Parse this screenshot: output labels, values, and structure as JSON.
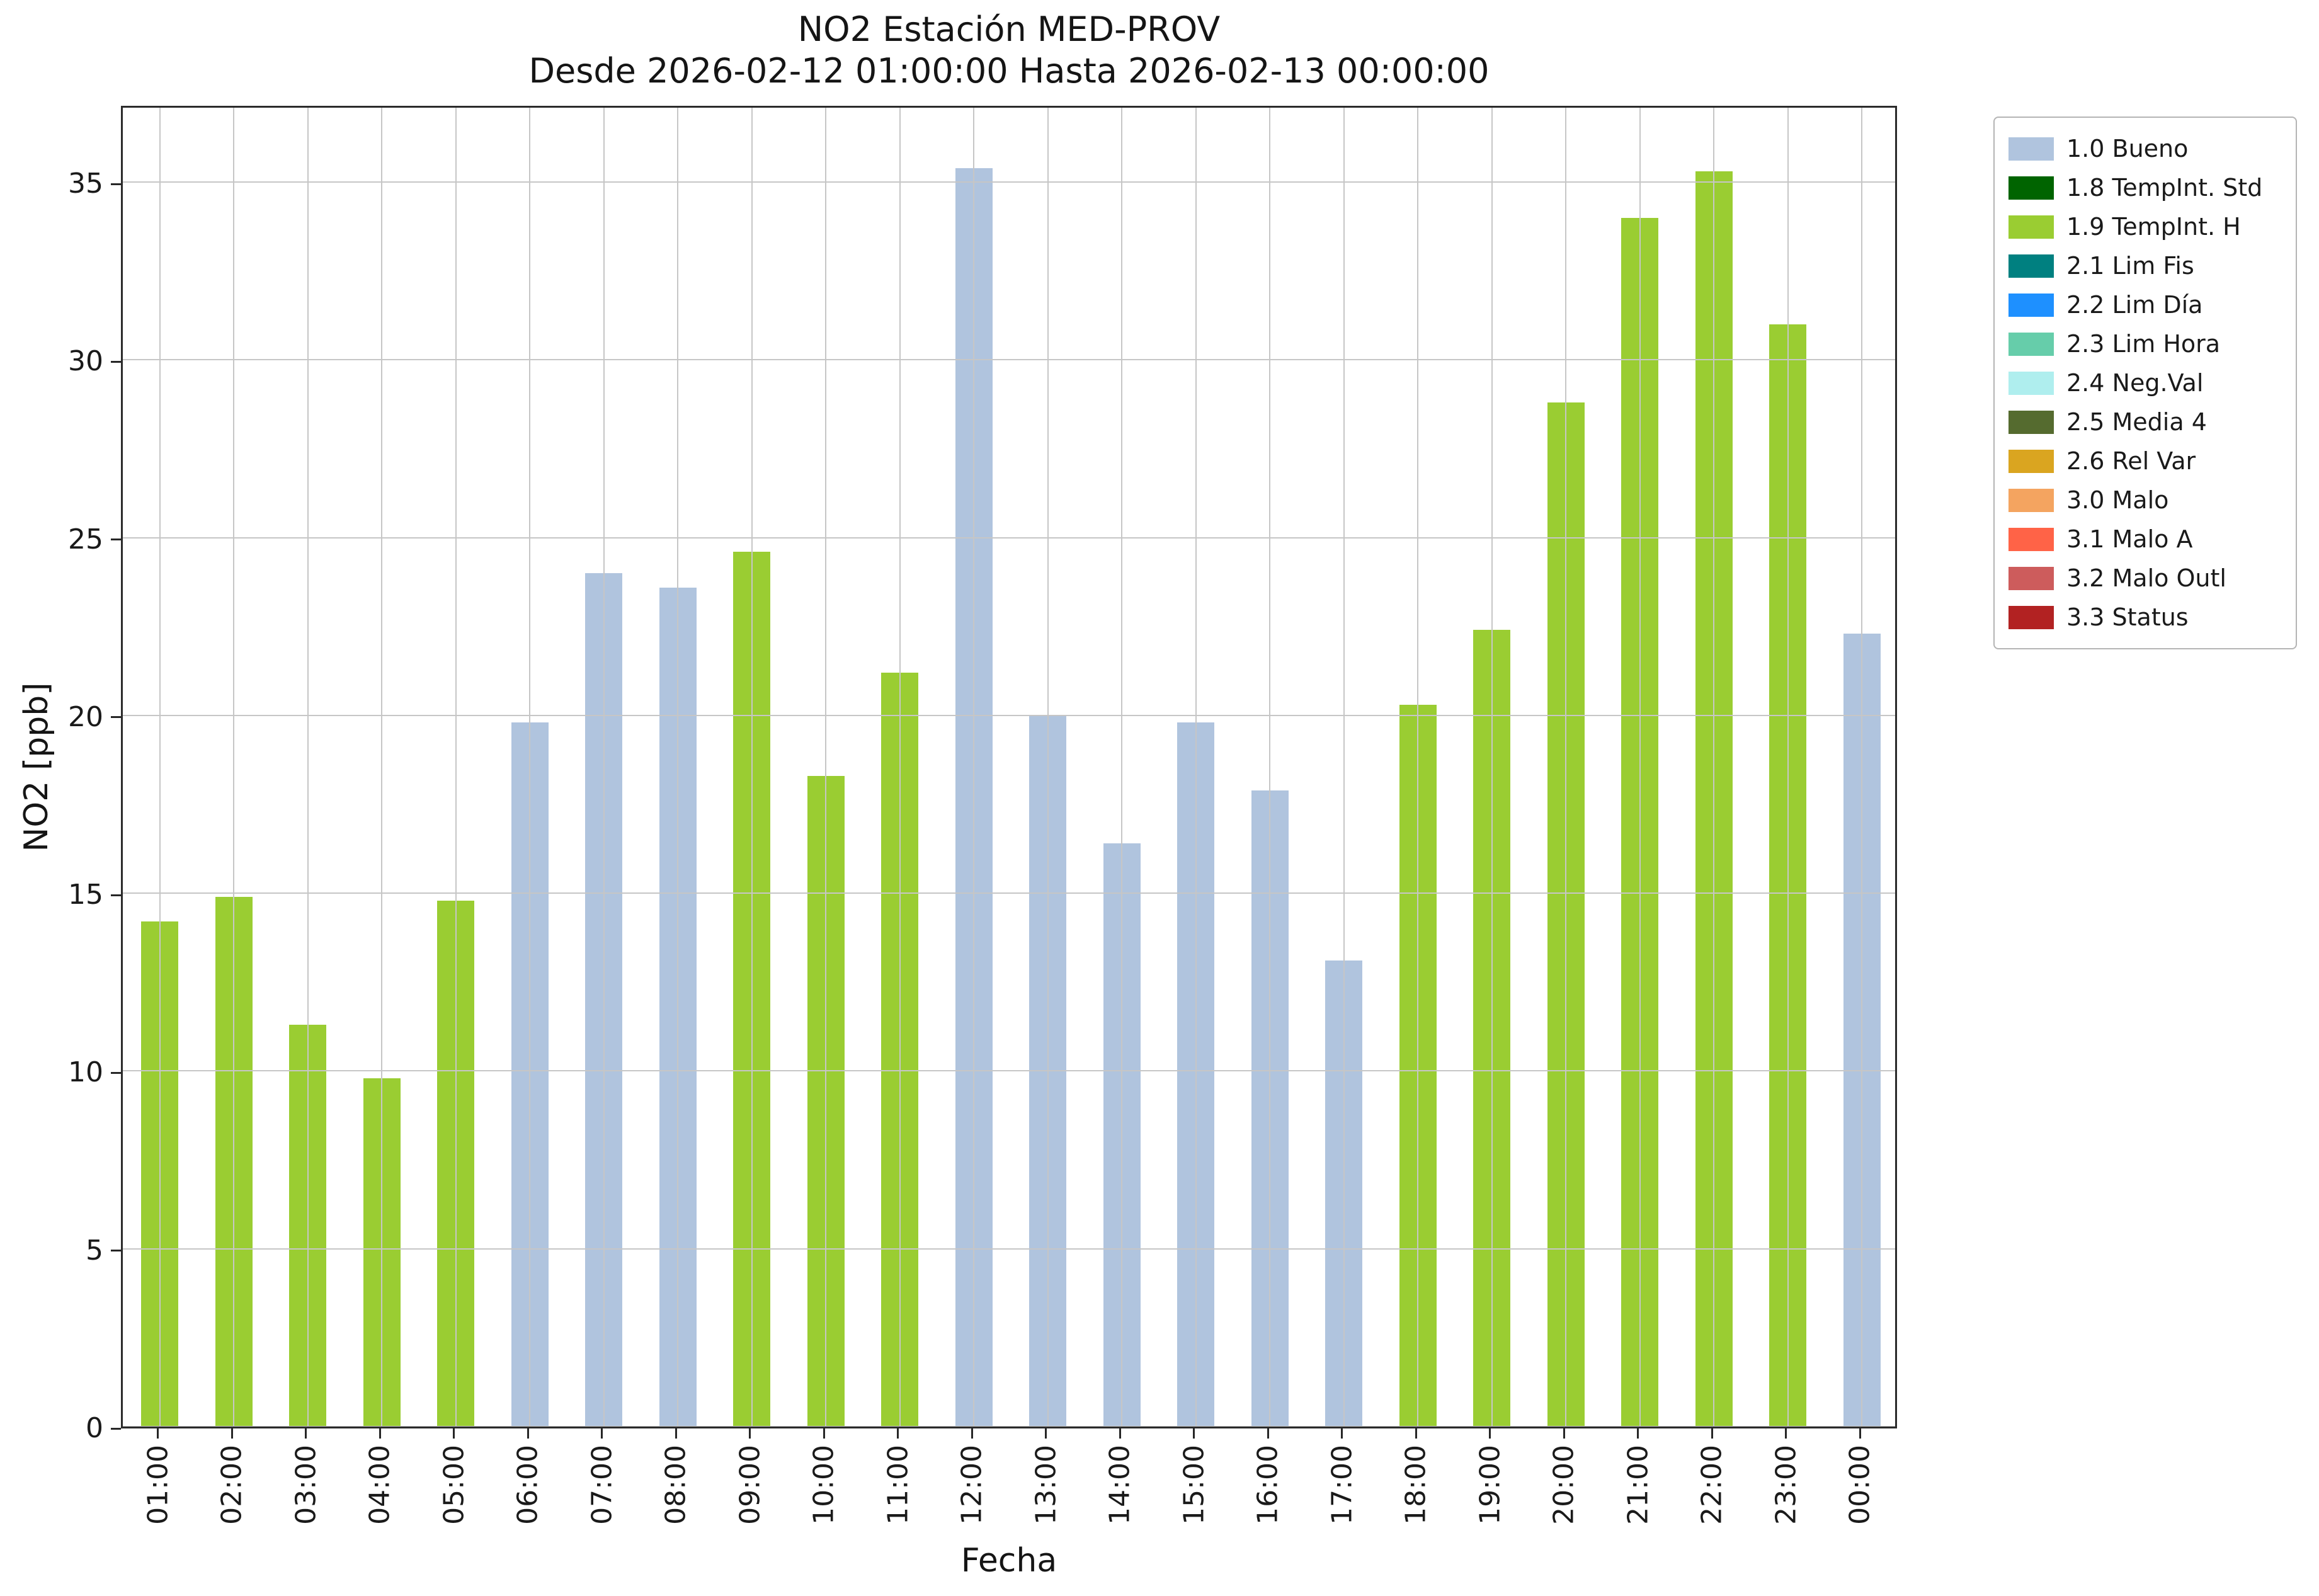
{
  "chart_data": {
    "type": "bar",
    "title": "NO2 Estación MED-PROV",
    "subtitle": "Desde 2026-02-12 01:00:00 Hasta 2026-02-13 00:00:00",
    "xlabel": "Fecha",
    "ylabel": "NO2 [ppb]",
    "ylim": [
      0,
      37.2
    ],
    "yticks": [
      0,
      5,
      10,
      15,
      20,
      25,
      30,
      35
    ],
    "grid": true,
    "legend_position": "upper right outside",
    "categories": [
      "01:00",
      "02:00",
      "03:00",
      "04:00",
      "05:00",
      "06:00",
      "07:00",
      "08:00",
      "09:00",
      "10:00",
      "11:00",
      "12:00",
      "13:00",
      "14:00",
      "15:00",
      "16:00",
      "17:00",
      "18:00",
      "19:00",
      "20:00",
      "21:00",
      "22:00",
      "23:00",
      "00:00"
    ],
    "values": [
      14.2,
      14.9,
      11.3,
      9.8,
      14.8,
      19.8,
      24.0,
      23.6,
      24.6,
      18.3,
      21.2,
      35.4,
      20.0,
      16.4,
      19.8,
      17.9,
      13.1,
      20.3,
      22.4,
      28.8,
      34.0,
      35.3,
      31.0,
      22.3
    ],
    "series_by_bar": [
      "1.9",
      "1.9",
      "1.9",
      "1.9",
      "1.9",
      "1.0",
      "1.0",
      "1.0",
      "1.9",
      "1.9",
      "1.9",
      "1.0",
      "1.0",
      "1.0",
      "1.0",
      "1.0",
      "1.0",
      "1.9",
      "1.9",
      "1.9",
      "1.9",
      "1.9",
      "1.9",
      "1.0"
    ],
    "flag_colors": {
      "1.0": "#b0c4de",
      "1.9": "#9acd32"
    },
    "legend": {
      "entries": [
        {
          "label": "1.0 Bueno",
          "color": "#b0c4de"
        },
        {
          "label": "1.8 TempInt. Std",
          "color": "#006400"
        },
        {
          "label": "1.9 TempInt. H",
          "color": "#9acd32"
        },
        {
          "label": "2.1 Lim Fis",
          "color": "#008080"
        },
        {
          "label": "2.2 Lim Día",
          "color": "#1e90ff"
        },
        {
          "label": "2.3 Lim Hora",
          "color": "#66cdaa"
        },
        {
          "label": "2.4 Neg.Val",
          "color": "#afeeee"
        },
        {
          "label": "2.5 Media 4",
          "color": "#556b2f"
        },
        {
          "label": "2.6 Rel Var",
          "color": "#daa520"
        },
        {
          "label": "3.0 Malo",
          "color": "#f4a460"
        },
        {
          "label": "3.1 Malo A",
          "color": "#ff6347"
        },
        {
          "label": "3.2 Malo Outl",
          "color": "#cd5c5c"
        },
        {
          "label": "3.3 Status",
          "color": "#b22222"
        }
      ]
    }
  }
}
